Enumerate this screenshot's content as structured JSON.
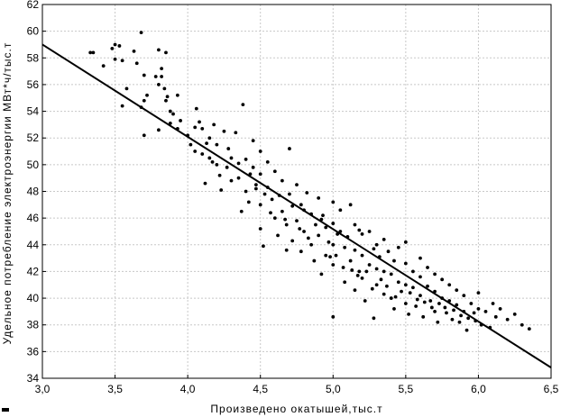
{
  "chart_data": {
    "type": "scatter",
    "xlabel": "Произведено окатышей,тыс.т",
    "ylabel": "Удельное потребление электроэнергии МВт*ч/тыс.т",
    "xlim": [
      3.0,
      6.5
    ],
    "ylim": [
      34,
      62
    ],
    "x_ticks": [
      "3,0",
      "3,5",
      "4,0",
      "4,5",
      "5,0",
      "5,5",
      "6,0",
      "6,5"
    ],
    "y_ticks": [
      "34",
      "36",
      "38",
      "40",
      "42",
      "44",
      "46",
      "48",
      "50",
      "52",
      "54",
      "56",
      "58",
      "60",
      "62"
    ],
    "grid": true,
    "regression_line": {
      "x": [
        3.0,
        6.5
      ],
      "y": [
        59.0,
        34.8
      ]
    },
    "series": [
      {
        "points": [
          [
            3.33,
            58.4
          ],
          [
            3.35,
            58.4
          ],
          [
            3.42,
            57.4
          ],
          [
            3.5,
            59.0
          ],
          [
            3.48,
            58.7
          ],
          [
            3.53,
            58.9
          ],
          [
            3.5,
            57.9
          ],
          [
            3.55,
            57.8
          ],
          [
            3.58,
            55.7
          ],
          [
            3.55,
            54.4
          ],
          [
            3.63,
            58.5
          ],
          [
            3.68,
            59.9
          ],
          [
            3.65,
            57.6
          ],
          [
            3.7,
            56.7
          ],
          [
            3.72,
            55.2
          ],
          [
            3.7,
            54.8
          ],
          [
            3.68,
            54.3
          ],
          [
            3.7,
            52.2
          ],
          [
            3.8,
            58.6
          ],
          [
            3.85,
            58.4
          ],
          [
            3.82,
            57.2
          ],
          [
            3.78,
            56.6
          ],
          [
            3.82,
            56.6
          ],
          [
            3.8,
            56.0
          ],
          [
            3.84,
            55.7
          ],
          [
            3.86,
            55.1
          ],
          [
            3.85,
            54.8
          ],
          [
            3.88,
            54.0
          ],
          [
            3.9,
            53.8
          ],
          [
            3.88,
            53.1
          ],
          [
            3.8,
            52.6
          ],
          [
            3.93,
            55.2
          ],
          [
            3.95,
            53.3
          ],
          [
            3.93,
            52.7
          ],
          [
            4.0,
            52.2
          ],
          [
            4.02,
            51.5
          ],
          [
            4.05,
            52.8
          ],
          [
            4.06,
            54.2
          ],
          [
            4.08,
            53.2
          ],
          [
            4.05,
            51.0
          ],
          [
            4.1,
            52.7
          ],
          [
            4.1,
            50.8
          ],
          [
            4.12,
            48.6
          ],
          [
            4.15,
            52.0
          ],
          [
            4.15,
            50.5
          ],
          [
            4.18,
            53.0
          ],
          [
            4.2,
            51.5
          ],
          [
            4.2,
            50.0
          ],
          [
            4.22,
            49.2
          ],
          [
            4.25,
            52.5
          ],
          [
            4.28,
            51.2
          ],
          [
            4.3,
            50.5
          ],
          [
            4.3,
            48.8
          ],
          [
            4.33,
            52.4
          ],
          [
            4.35,
            50.1
          ],
          [
            4.35,
            49.0
          ],
          [
            4.38,
            54.5
          ],
          [
            4.4,
            50.4
          ],
          [
            4.4,
            48.0
          ],
          [
            4.42,
            47.2
          ],
          [
            4.45,
            51.8
          ],
          [
            4.45,
            49.8
          ],
          [
            4.47,
            48.5
          ],
          [
            4.5,
            51.0
          ],
          [
            4.5,
            49.3
          ],
          [
            4.5,
            47.0
          ],
          [
            4.5,
            45.2
          ],
          [
            4.52,
            43.9
          ],
          [
            4.55,
            50.2
          ],
          [
            4.55,
            48.3
          ],
          [
            4.58,
            47.4
          ],
          [
            4.6,
            49.5
          ],
          [
            4.6,
            46.0
          ],
          [
            4.62,
            44.7
          ],
          [
            4.65,
            48.8
          ],
          [
            4.65,
            46.5
          ],
          [
            4.68,
            45.5
          ],
          [
            4.7,
            51.2
          ],
          [
            4.7,
            47.8
          ],
          [
            4.72,
            46.9
          ],
          [
            4.72,
            44.3
          ],
          [
            4.75,
            48.5
          ],
          [
            4.75,
            45.8
          ],
          [
            4.78,
            47.0
          ],
          [
            4.78,
            43.5
          ],
          [
            4.8,
            46.6
          ],
          [
            4.8,
            45.0
          ],
          [
            4.82,
            47.9
          ],
          [
            4.85,
            46.3
          ],
          [
            4.85,
            44.0
          ],
          [
            4.87,
            42.8
          ],
          [
            4.88,
            45.5
          ],
          [
            4.9,
            47.5
          ],
          [
            4.9,
            44.7
          ],
          [
            4.92,
            41.8
          ],
          [
            4.93,
            46.2
          ],
          [
            4.95,
            45.3
          ],
          [
            4.95,
            43.2
          ],
          [
            4.97,
            44.2
          ],
          [
            5.0,
            47.2
          ],
          [
            5.0,
            45.6
          ],
          [
            5.0,
            44.0
          ],
          [
            5.0,
            42.5
          ],
          [
            5.0,
            38.6
          ],
          [
            5.02,
            43.2
          ],
          [
            5.05,
            46.6
          ],
          [
            5.05,
            45.0
          ],
          [
            5.08,
            43.8
          ],
          [
            5.08,
            41.2
          ],
          [
            5.1,
            44.6
          ],
          [
            5.12,
            47.0
          ],
          [
            5.12,
            42.8
          ],
          [
            5.15,
            45.5
          ],
          [
            5.15,
            43.6
          ],
          [
            5.15,
            40.6
          ],
          [
            5.18,
            42.0
          ],
          [
            5.2,
            44.8
          ],
          [
            5.2,
            43.2
          ],
          [
            5.2,
            41.5
          ],
          [
            5.22,
            39.8
          ],
          [
            5.25,
            45.0
          ],
          [
            5.25,
            42.5
          ],
          [
            5.27,
            40.7
          ],
          [
            5.28,
            38.5
          ],
          [
            5.3,
            44.0
          ],
          [
            5.3,
            42.2
          ],
          [
            5.3,
            41.0
          ],
          [
            5.32,
            43.1
          ],
          [
            5.35,
            44.4
          ],
          [
            5.35,
            42.0
          ],
          [
            5.35,
            40.3
          ],
          [
            5.38,
            43.5
          ],
          [
            5.4,
            41.8
          ],
          [
            5.4,
            40.0
          ],
          [
            5.42,
            42.8
          ],
          [
            5.42,
            39.2
          ],
          [
            5.45,
            43.8
          ],
          [
            5.45,
            41.2
          ],
          [
            5.47,
            40.5
          ],
          [
            5.5,
            44.2
          ],
          [
            5.5,
            42.6
          ],
          [
            5.5,
            41.0
          ],
          [
            5.5,
            39.6
          ],
          [
            5.52,
            38.8
          ],
          [
            5.55,
            42.0
          ],
          [
            5.55,
            40.8
          ],
          [
            5.57,
            39.4
          ],
          [
            5.6,
            43.0
          ],
          [
            5.6,
            41.6
          ],
          [
            5.6,
            40.2
          ],
          [
            5.62,
            38.6
          ],
          [
            5.65,
            42.3
          ],
          [
            5.65,
            40.9
          ],
          [
            5.67,
            39.8
          ],
          [
            5.7,
            41.8
          ],
          [
            5.7,
            40.5
          ],
          [
            5.7,
            39.0
          ],
          [
            5.72,
            38.2
          ],
          [
            5.75,
            41.4
          ],
          [
            5.75,
            40.0
          ],
          [
            5.77,
            39.3
          ],
          [
            5.8,
            41.0
          ],
          [
            5.8,
            39.8
          ],
          [
            5.82,
            38.4
          ],
          [
            5.85,
            40.6
          ],
          [
            5.85,
            39.5
          ],
          [
            5.88,
            38.7
          ],
          [
            5.9,
            40.2
          ],
          [
            5.9,
            39.0
          ],
          [
            5.92,
            37.6
          ],
          [
            5.95,
            39.6
          ],
          [
            5.98,
            38.3
          ],
          [
            6.0,
            40.4
          ],
          [
            6.0,
            39.2
          ],
          [
            6.02,
            38.0
          ],
          [
            6.05,
            39.0
          ],
          [
            6.08,
            37.8
          ],
          [
            6.1,
            39.6
          ],
          [
            6.12,
            38.6
          ],
          [
            6.15,
            39.2
          ],
          [
            6.2,
            38.4
          ],
          [
            6.25,
            38.8
          ],
          [
            6.3,
            38.0
          ],
          [
            6.35,
            37.7
          ],
          [
            4.47,
            48.2
          ],
          [
            4.57,
            46.4
          ],
          [
            4.67,
            45.9
          ],
          [
            4.77,
            45.2
          ],
          [
            4.83,
            44.5
          ],
          [
            4.98,
            43.1
          ],
          [
            5.03,
            44.8
          ],
          [
            5.07,
            42.3
          ],
          [
            5.13,
            42.1
          ],
          [
            5.17,
            41.7
          ],
          [
            5.23,
            42.0
          ],
          [
            5.33,
            41.4
          ],
          [
            5.37,
            40.9
          ],
          [
            5.43,
            40.1
          ],
          [
            5.53,
            40.4
          ],
          [
            5.58,
            39.9
          ],
          [
            5.63,
            39.7
          ],
          [
            5.68,
            39.3
          ],
          [
            5.73,
            39.6
          ],
          [
            5.78,
            38.9
          ],
          [
            5.83,
            39.1
          ],
          [
            5.87,
            38.2
          ],
          [
            5.93,
            38.5
          ],
          [
            5.97,
            38.9
          ],
          [
            5.28,
            43.7
          ],
          [
            5.18,
            45.1
          ],
          [
            4.92,
            45.9
          ],
          [
            4.63,
            47.7
          ],
          [
            4.43,
            49.3
          ],
          [
            4.27,
            49.8
          ],
          [
            4.17,
            50.2
          ],
          [
            4.13,
            51.6
          ],
          [
            4.23,
            48.1
          ],
          [
            4.37,
            46.5
          ],
          [
            4.53,
            47.8
          ],
          [
            4.68,
            43.6
          ]
        ]
      }
    ]
  }
}
